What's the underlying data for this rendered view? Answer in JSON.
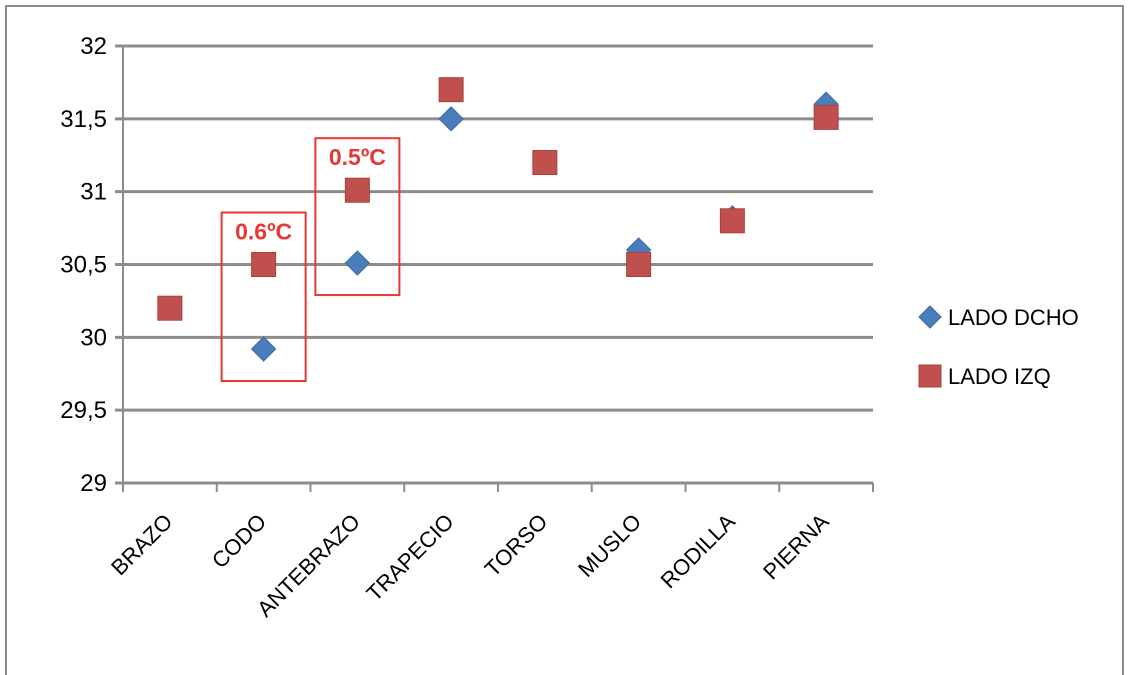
{
  "chart_data": {
    "type": "scatter",
    "title": "",
    "xlabel": "",
    "ylabel": "",
    "categories": [
      "BRAZO",
      "CODO",
      "ANTEBRAZO",
      "TRAPECIO",
      "TORSO",
      "MUSLO",
      "RODILLA",
      "PIERNA"
    ],
    "y_ticks": [
      "29",
      "29,5",
      "30",
      "30,5",
      "31",
      "31,5",
      "32"
    ],
    "ylim": [
      29,
      32
    ],
    "grid": true,
    "legend_position": "right",
    "series": [
      {
        "name": "LADO DCHO",
        "marker": "diamond",
        "color": "#4a7ebb",
        "values": [
          30.2,
          29.92,
          30.51,
          31.5,
          31.2,
          30.6,
          30.82,
          31.6
        ]
      },
      {
        "name": "LADO IZQ",
        "marker": "square",
        "color": "#c0504d",
        "values": [
          30.2,
          30.5,
          31.01,
          31.7,
          31.2,
          30.5,
          30.8,
          31.51
        ]
      }
    ],
    "annotations": [
      {
        "category": "CODO",
        "text": "0.6ºC",
        "color": "#e53935"
      },
      {
        "category": "ANTEBRAZO",
        "text": "0.5ºC",
        "color": "#e53935"
      }
    ]
  }
}
